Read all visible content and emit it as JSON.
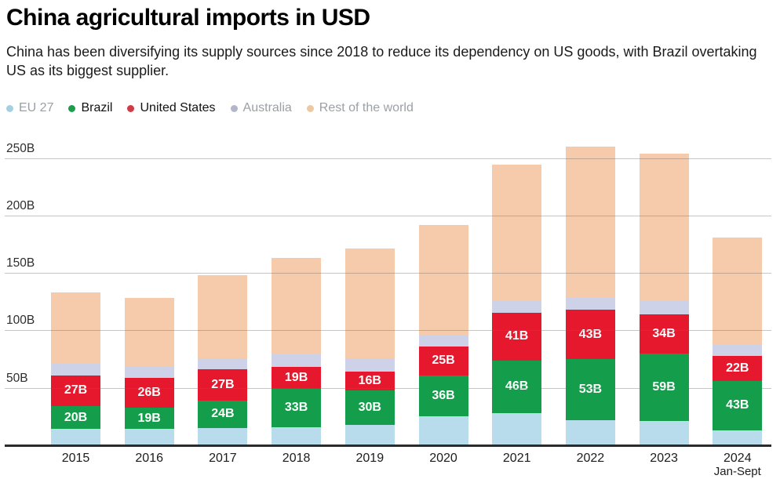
{
  "header": {
    "title": "China agricultural imports in USD",
    "subtitle": "China has been diversifying its supply sources since 2018 to reduce its dependency on US goods, with Brazil overtaking US as its biggest supplier."
  },
  "chart_data": {
    "type": "bar",
    "stacked": true,
    "title": "China agricultural imports in USD",
    "unit": "USD billions",
    "legend_position": "top",
    "grid": true,
    "categories": [
      "2015",
      "2016",
      "2017",
      "2018",
      "2019",
      "2020",
      "2021",
      "2022",
      "2023",
      "2024"
    ],
    "category_sub_labels": [
      "",
      "",
      "",
      "",
      "",
      "",
      "",
      "",
      "",
      "Jan-Sept"
    ],
    "y_ticks": [
      {
        "value": 50,
        "label": "50B"
      },
      {
        "value": 100,
        "label": "100B"
      },
      {
        "value": 150,
        "label": "150B"
      },
      {
        "value": 200,
        "label": "200B"
      },
      {
        "value": 250,
        "label": "250B"
      }
    ],
    "ylim": [
      0,
      270
    ],
    "series": [
      {
        "name": "EU 27",
        "color": "#b9dcec",
        "dot_color": "#a7cfe2",
        "legend_text_color": "#9aa0a6",
        "values": [
          14,
          14,
          15,
          16,
          18,
          25,
          28,
          22,
          21,
          13
        ],
        "data_labels": null
      },
      {
        "name": "Brazil",
        "color": "#149e4c",
        "dot_color": "#1b9d4c",
        "legend_text_color": "#111111",
        "values": [
          20,
          19,
          24,
          33,
          30,
          36,
          46,
          53,
          59,
          43
        ],
        "data_labels": [
          "20B",
          "19B",
          "24B",
          "33B",
          "30B",
          "36B",
          "46B",
          "53B",
          "59B",
          "43B"
        ]
      },
      {
        "name": "United States",
        "color": "#e5182d",
        "dot_color": "#d23a45",
        "legend_text_color": "#111111",
        "values": [
          27,
          26,
          27,
          19,
          16,
          25,
          41,
          43,
          34,
          22
        ],
        "data_labels": [
          "27B",
          "26B",
          "27B",
          "19B",
          "16B",
          "25B",
          "41B",
          "43B",
          "34B",
          "22B"
        ]
      },
      {
        "name": "Australia",
        "color": "#cdd2e8",
        "dot_color": "#b2b6c6",
        "legend_text_color": "#9aa0a6",
        "values": [
          10,
          10,
          10,
          11,
          12,
          10,
          11,
          10,
          12,
          9
        ],
        "data_labels": null
      },
      {
        "name": "Rest of the world",
        "color": "#f5cbab",
        "dot_color": "#ecc9a3",
        "legend_text_color": "#9aa0a6",
        "values": [
          62,
          59,
          72,
          84,
          95,
          96,
          118,
          132,
          128,
          94
        ],
        "data_labels": null
      }
    ],
    "totals": [
      133,
      128,
      148,
      163,
      171,
      192,
      244,
      260,
      254,
      181
    ]
  }
}
